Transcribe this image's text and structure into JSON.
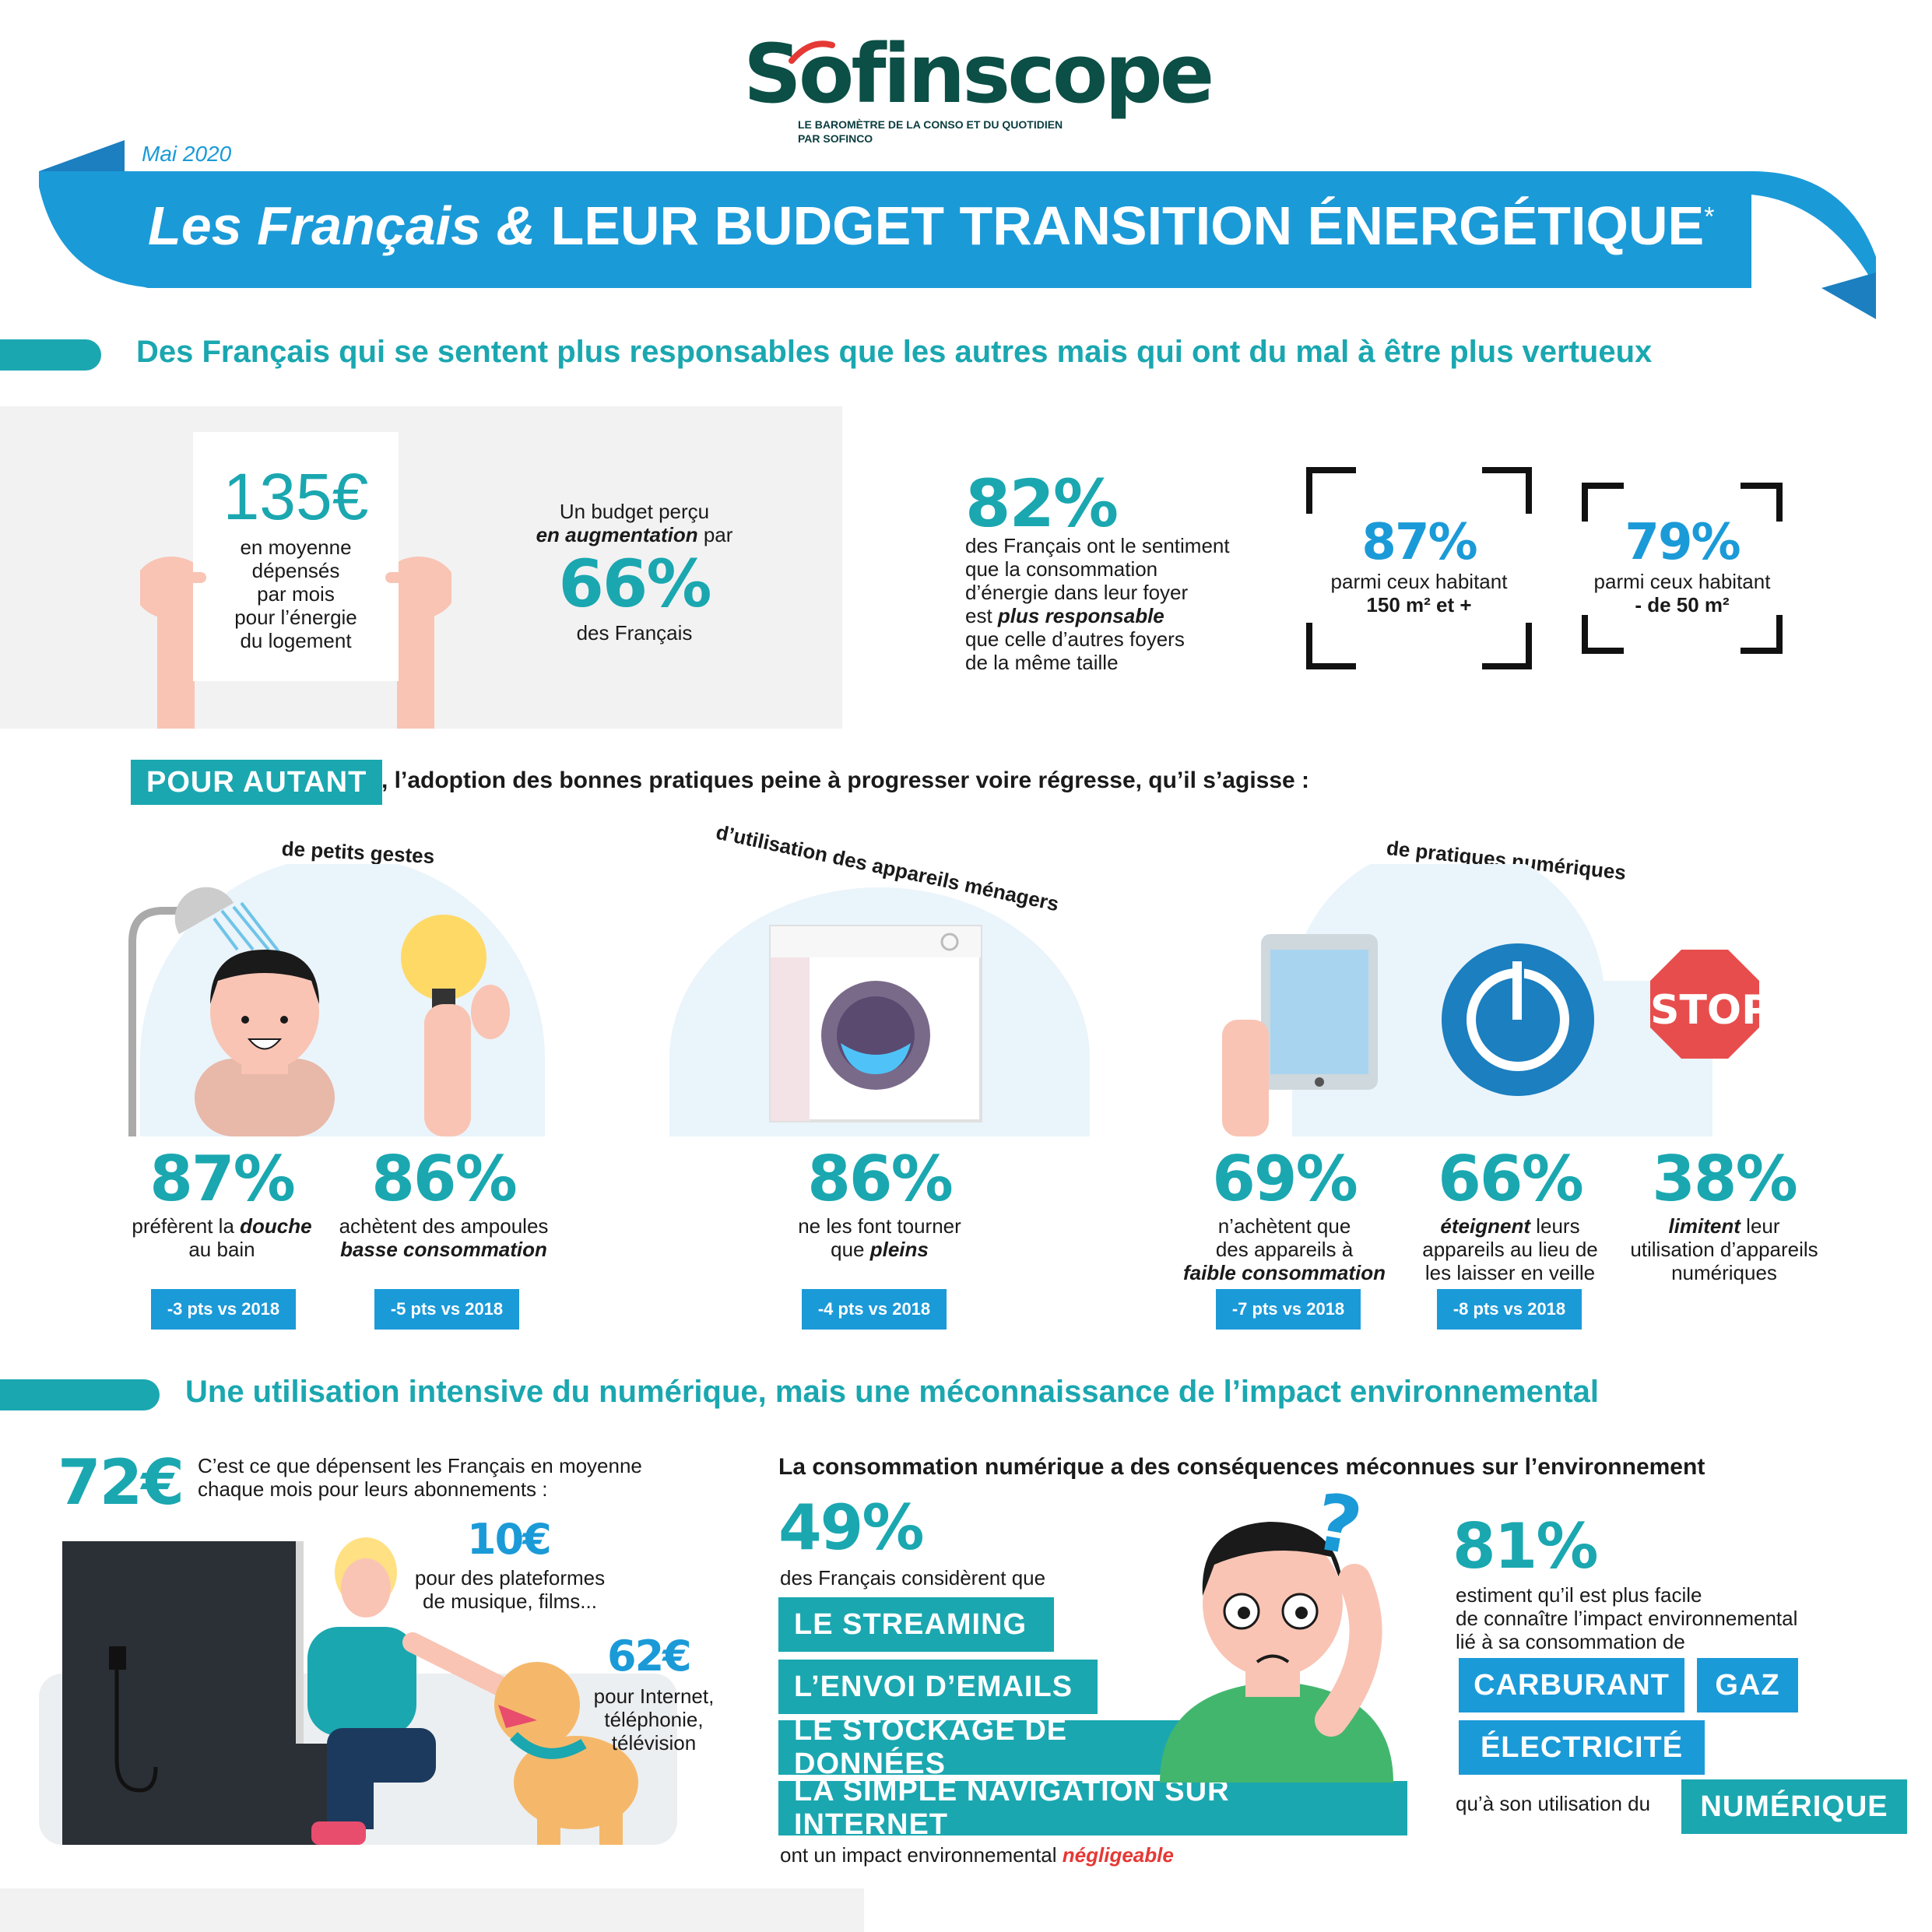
{
  "header": {
    "logo_text": "Sofinscope",
    "logo_tagline_1": "LE BAROMÈTRE DE LA CONSO ET DU QUOTIDIEN",
    "logo_tagline_2": "PAR SOFINCO",
    "date": "Mai 2020",
    "title_italic": "Les Français",
    "title_amp": "&",
    "title_caps": "LEUR BUDGET TRANSITION ÉNERGÉTIQUE",
    "title_star": "*"
  },
  "section1": {
    "heading": "Des Français qui se sentent plus responsables que les autres mais qui ont du mal à être plus vertueux",
    "budget": {
      "amount": "135€",
      "line1": "en moyenne",
      "line2": "dépensés",
      "line3": "par mois",
      "line4": "pour l’énergie",
      "line5": "du logement"
    },
    "perceived": {
      "line1": "Un budget perçu",
      "line2_it": "en augmentation",
      "line2_rest": " par",
      "value": "66%",
      "line3": "des Français"
    },
    "responsible": {
      "value": "82%",
      "line1": "des Français ont le sentiment",
      "line2": "que la consommation",
      "line3": "d’énergie dans leur foyer",
      "line4_pre": "est ",
      "line4_it": "plus responsable",
      "line5": "que celle d’autres foyers",
      "line6": "de la même taille"
    },
    "box1": {
      "value": "87%",
      "line1": "parmi ceux habitant",
      "line2": "150 m² et +"
    },
    "box2": {
      "value": "79%",
      "line1": "parmi ceux habitant",
      "line2": "- de 50 m²"
    }
  },
  "pour_autant": {
    "tag": "POUR AUTANT",
    "text": ", l’adoption des bonnes pratiques peine à progresser voire régresse, qu’il s’agisse :"
  },
  "practices": {
    "group1_label": "de petits gestes",
    "group2_label": "d’utilisation des appareils ménagers",
    "group3_label": "de pratiques numériques",
    "stop_sign": "STOP",
    "items": [
      {
        "value": "87%",
        "l1_pre": "préfèrent la ",
        "l1_it": "douche",
        "l2": "au bain",
        "delta": "-3 pts vs 2018"
      },
      {
        "value": "86%",
        "l1": "achètent des ampoules",
        "l2_it": "basse consommation",
        "delta": "-5 pts vs 2018"
      },
      {
        "value": "86%",
        "l1": "ne les font tourner",
        "l2_pre": "que ",
        "l2_it": "pleins",
        "delta": "-4 pts vs 2018"
      },
      {
        "value": "69%",
        "l1": "n’achètent que",
        "l2": "des appareils à",
        "l3_it": "faible consommation",
        "delta": "-7 pts vs 2018"
      },
      {
        "value": "66%",
        "l1_it": "éteignent",
        "l1_rest": " leurs",
        "l2": "appareils au lieu de",
        "l3": "les laisser en veille",
        "delta": "-8 pts vs 2018"
      },
      {
        "value": "38%",
        "l1_it": "limitent",
        "l1_rest": " leur",
        "l2": "utilisation d’appareils",
        "l3": "numériques"
      }
    ]
  },
  "section2": {
    "heading": "Une utilisation intensive du numérique, mais une méconnaissance de l’impact environnemental",
    "spend": {
      "value": "72€",
      "line1": "C’est ce que dépensent les Français en moyenne",
      "line2": "chaque mois pour leurs abonnements :",
      "sub1_value": "10€",
      "sub1_l1": "pour des plateformes",
      "sub1_l2": "de musique, films...",
      "sub2_value": "62€",
      "sub2_l1": "pour Internet,",
      "sub2_l2": "téléphonie,",
      "sub2_l3": "télévision"
    },
    "impact_heading": "La consommation numérique a des conséquences méconnues sur l’environnement",
    "negligible": {
      "value": "49%",
      "line1": "des Français considèrent que",
      "tags": [
        "LE STREAMING",
        "L’ENVOI D’EMAILS",
        "LE STOCKAGE DE DONNÉES",
        "LA SIMPLE NAVIGATION SUR INTERNET"
      ],
      "footer_pre": "ont un impact environnemental ",
      "footer_red": "négligeable"
    },
    "easier": {
      "value": "81%",
      "line1": "estiment qu’il est plus facile",
      "line2": "de connaître l’impact environnemental",
      "line3": "lié à sa consommation de",
      "tags": [
        "CARBURANT",
        "GAZ",
        "ÉLECTRICITÉ"
      ],
      "footer": "qu’à son utilisation du",
      "final_tag": "NUMÉRIQUE"
    },
    "question_mark": "?"
  },
  "colors": {
    "teal": "#1aa7b0",
    "blue": "#1b9ad8",
    "dark_green": "#0b3d3f",
    "red": "#e53935",
    "grey_bg": "#f2f2f2"
  }
}
